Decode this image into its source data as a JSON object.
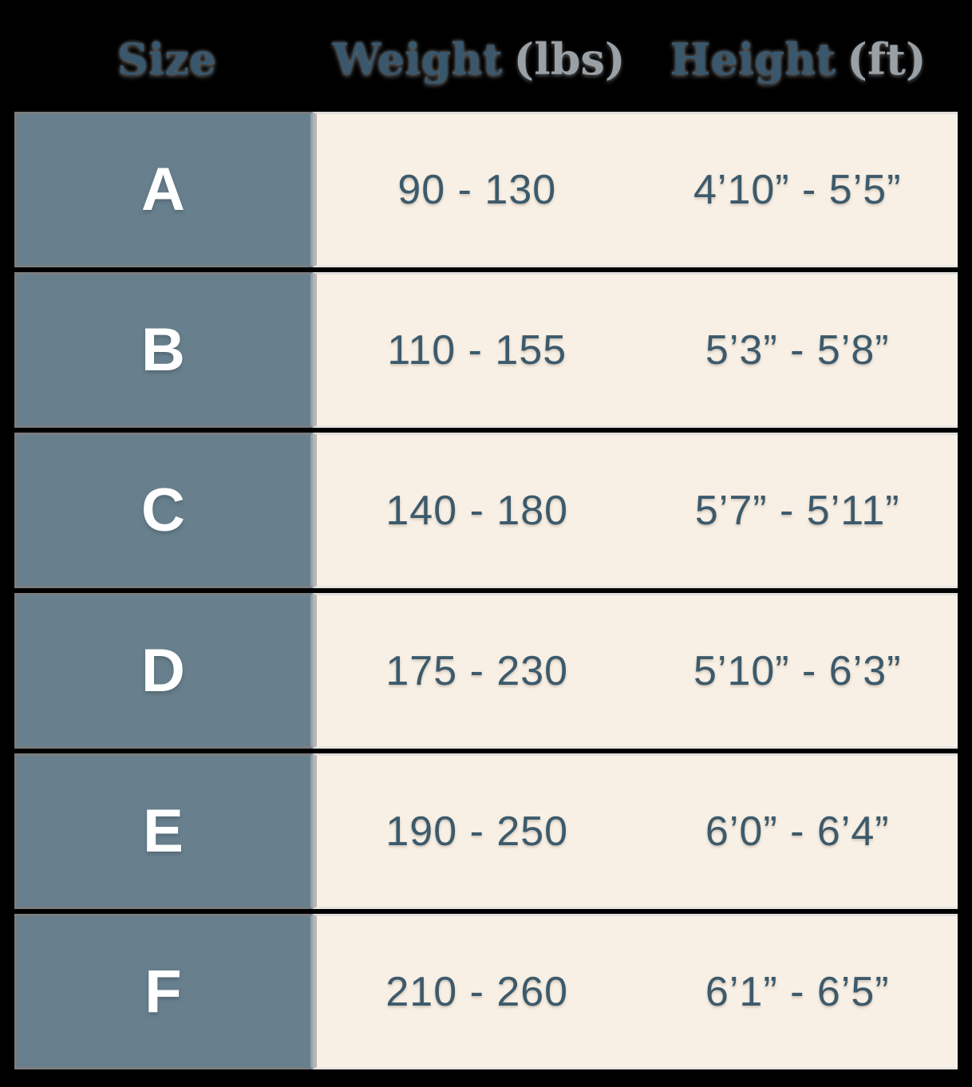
{
  "chart_data": {
    "type": "table",
    "columns": [
      "Size",
      "Weight (lbs)",
      "Height (ft)"
    ],
    "rows": [
      [
        "A",
        "90 - 130",
        "4’10” - 5’5”"
      ],
      [
        "B",
        "110 - 155",
        "5’3” - 5’8”"
      ],
      [
        "C",
        "140 - 180",
        "5’7” - 5’11”"
      ],
      [
        "D",
        "175 - 230",
        "5’10” - 6’3”"
      ],
      [
        "E",
        "190 - 250",
        "6’0” - 6’4”"
      ],
      [
        "F",
        "210 - 260",
        "6’1” - 6’5”"
      ]
    ],
    "layout": {
      "header_position": "top",
      "grid": "rows separated by dark gaps",
      "size_column_style": "slate block with white letter"
    }
  },
  "header": {
    "size": "Size",
    "weight_main": "Weight",
    "weight_suffix": "(lbs)",
    "height_main": "Height",
    "height_suffix": "(ft)"
  },
  "colors": {
    "background": "#000000",
    "slate_cell": "#68808E",
    "cream_cell": "#F9F0E5",
    "header_text": "#39576D",
    "header_suffix_text": "#99A0A6",
    "value_text": "#3C5A6C",
    "row_letter_text": "#FFFFFF",
    "cell_edge_gray": "#7E7E7E",
    "column_divider_blue": "#8FA2B0",
    "column_divider_warm_gray": "#B9B4B1"
  }
}
